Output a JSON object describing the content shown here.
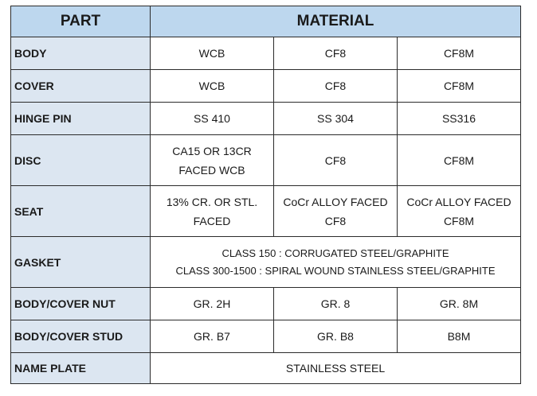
{
  "table": {
    "header": {
      "part": "PART",
      "material": "MATERIAL"
    },
    "rows": [
      {
        "part": "BODY",
        "values": [
          "WCB",
          "CF8",
          "CF8M"
        ]
      },
      {
        "part": "COVER",
        "values": [
          "WCB",
          "CF8",
          "CF8M"
        ]
      },
      {
        "part": "HINGE PIN",
        "values": [
          "SS 410",
          "SS 304",
          "SS316"
        ]
      },
      {
        "part": "DISC",
        "values": [
          [
            "CA15 OR 13CR",
            "FACED WCB"
          ],
          "CF8",
          "CF8M"
        ]
      },
      {
        "part": "SEAT",
        "values": [
          [
            "13% CR. OR STL.",
            "FACED"
          ],
          [
            "CoCr ALLOY FACED",
            "CF8"
          ],
          [
            "CoCr ALLOY FACED",
            "CF8M"
          ]
        ]
      },
      {
        "part": "GASKET",
        "span": [
          "CLASS 150 : CORRUGATED STEEL/GRAPHITE",
          "CLASS 300-1500 : SPIRAL WOUND STAINLESS STEEL/GRAPHITE"
        ]
      },
      {
        "part": "BODY/COVER NUT",
        "values": [
          "GR. 2H",
          "GR. 8",
          "GR. 8M"
        ]
      },
      {
        "part": "BODY/COVER STUD",
        "values": [
          "GR. B7",
          "GR. B8",
          "B8M"
        ]
      },
      {
        "part": "NAME PLATE",
        "span": "STAINLESS STEEL"
      }
    ]
  }
}
